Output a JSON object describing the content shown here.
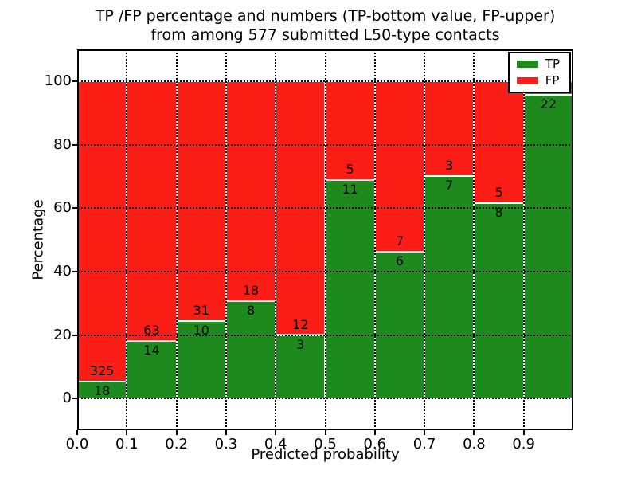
{
  "title": {
    "line1": "TP /FP percentage and numbers (TP-bottom value, FP-upper)",
    "line2": "from among 577 submitted L50-type contacts"
  },
  "axes": {
    "xlabel": "Predicted probability",
    "ylabel": "Percentage",
    "xlim": [
      0.0,
      1.0
    ],
    "ylim": [
      -10,
      110
    ],
    "grid": true,
    "xticks": [
      {
        "label": "0.0",
        "value": 0.0
      },
      {
        "label": "0.1",
        "value": 0.1
      },
      {
        "label": "0.2",
        "value": 0.2
      },
      {
        "label": "0.3",
        "value": 0.3
      },
      {
        "label": "0.4",
        "value": 0.4
      },
      {
        "label": "0.5",
        "value": 0.5
      },
      {
        "label": "0.6",
        "value": 0.6
      },
      {
        "label": "0.7",
        "value": 0.7
      },
      {
        "label": "0.8",
        "value": 0.8
      },
      {
        "label": "0.9",
        "value": 0.9
      }
    ],
    "yticks": [
      {
        "label": "0",
        "value": 0
      },
      {
        "label": "20",
        "value": 20
      },
      {
        "label": "40",
        "value": 40
      },
      {
        "label": "60",
        "value": 60
      },
      {
        "label": "80",
        "value": 80
      },
      {
        "label": "100",
        "value": 100
      }
    ]
  },
  "legend": {
    "position": "upper-right",
    "items": [
      {
        "label": "TP",
        "color": "#1e8a1e"
      },
      {
        "label": "FP",
        "color": "#fc1d17"
      }
    ]
  },
  "colors": {
    "tp": "#1e8a1e",
    "fp": "#fc1d17",
    "bar_edge": "#ffffff",
    "grid": "#000000",
    "text": "#000000",
    "background": "#ffffff"
  },
  "chart_data": {
    "type": "bar",
    "stacked": true,
    "normalized_to_percent": true,
    "title": "TP /FP percentage and numbers (TP-bottom value, FP-upper) from among 577 submitted L50-type contacts",
    "xlabel": "Predicted probability",
    "ylabel": "Percentage",
    "total_submitted": 577,
    "series_names": [
      "TP",
      "FP"
    ],
    "bins": [
      {
        "x0": 0.0,
        "x1": 0.1,
        "tp": 18,
        "fp": 325,
        "tp_pct": 5.25,
        "tp_label": "18",
        "fp_label": "325"
      },
      {
        "x0": 0.1,
        "x1": 0.2,
        "tp": 14,
        "fp": 63,
        "tp_pct": 18.18,
        "tp_label": "14",
        "fp_label": "63"
      },
      {
        "x0": 0.2,
        "x1": 0.3,
        "tp": 10,
        "fp": 31,
        "tp_pct": 24.39,
        "tp_label": "10",
        "fp_label": "31"
      },
      {
        "x0": 0.3,
        "x1": 0.4,
        "tp": 8,
        "fp": 18,
        "tp_pct": 30.77,
        "tp_label": "8",
        "fp_label": "18"
      },
      {
        "x0": 0.4,
        "x1": 0.5,
        "tp": 3,
        "fp": 12,
        "tp_pct": 20.0,
        "tp_label": "3",
        "fp_label": "12"
      },
      {
        "x0": 0.5,
        "x1": 0.6,
        "tp": 11,
        "fp": 5,
        "tp_pct": 68.75,
        "tp_label": "11",
        "fp_label": "5"
      },
      {
        "x0": 0.6,
        "x1": 0.7,
        "tp": 6,
        "fp": 7,
        "tp_pct": 46.15,
        "tp_label": "6",
        "fp_label": "7"
      },
      {
        "x0": 0.7,
        "x1": 0.8,
        "tp": 7,
        "fp": 3,
        "tp_pct": 70.0,
        "tp_label": "7",
        "fp_label": "3"
      },
      {
        "x0": 0.8,
        "x1": 0.9,
        "tp": 8,
        "fp": 5,
        "tp_pct": 61.54,
        "tp_label": "8",
        "fp_label": "5"
      },
      {
        "x0": 0.9,
        "x1": 1.0,
        "tp": 22,
        "fp": null,
        "tp_pct": 95.65,
        "tp_label": "22",
        "fp_label": ""
      }
    ]
  }
}
